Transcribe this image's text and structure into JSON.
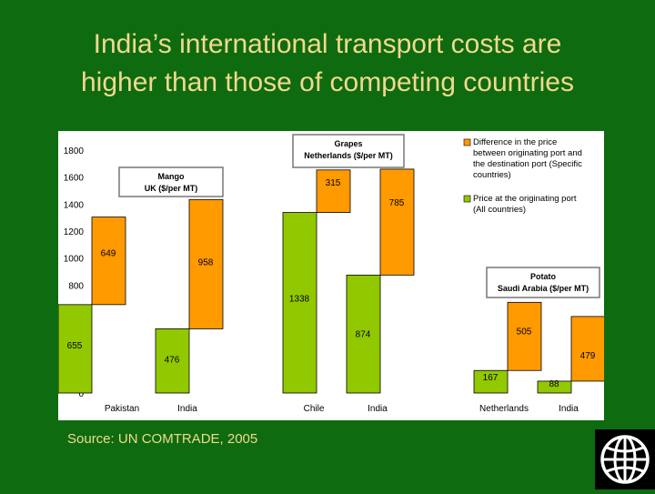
{
  "slide": {
    "title_line1": "India’s international transport costs are",
    "title_line2": "higher than those of competing countries",
    "source": "Source: UN COMTRADE, 2005"
  },
  "colors": {
    "background": "#0f6b0f",
    "title": "#f1d98f",
    "price": "#92c800",
    "difference": "#ff9a00"
  },
  "chart_data": {
    "type": "bar",
    "stacked": true,
    "ylim": [
      0,
      1800
    ],
    "yticks": [
      0,
      200,
      400,
      600,
      800,
      1000,
      1200,
      1400,
      1600,
      1800
    ],
    "grid": false,
    "legend_position": "top-right",
    "categories": [
      "Pakistan",
      "India",
      "Chile",
      "India",
      "Netherlands",
      "India"
    ],
    "series": [
      {
        "name": "Price at the originating port (All countries)",
        "values": [
          655,
          476,
          1338,
          874,
          167,
          88
        ]
      },
      {
        "name": "Difference in the price between originating port and the destination port (Specific countries)",
        "values": [
          649,
          958,
          315,
          785,
          505,
          479
        ]
      }
    ],
    "groups": [
      {
        "label_line1": "Mango",
        "label_line2": "UK ($/per MT)",
        "categories": [
          0,
          1
        ]
      },
      {
        "label_line1": "Grapes",
        "label_line2": "Netherlands ($/per MT)",
        "categories": [
          2,
          3
        ]
      },
      {
        "label_line1": "Potato",
        "label_line2": "Saudi Arabia ($/per MT)",
        "categories": [
          4,
          5
        ]
      }
    ],
    "legend": [
      {
        "line1": "Difference in the price",
        "line2": "between originating port and",
        "line3": "the destination port (Specific",
        "line4": "countries)"
      },
      {
        "line1": "Price at the originating port",
        "line2": "(All countries)"
      }
    ]
  }
}
